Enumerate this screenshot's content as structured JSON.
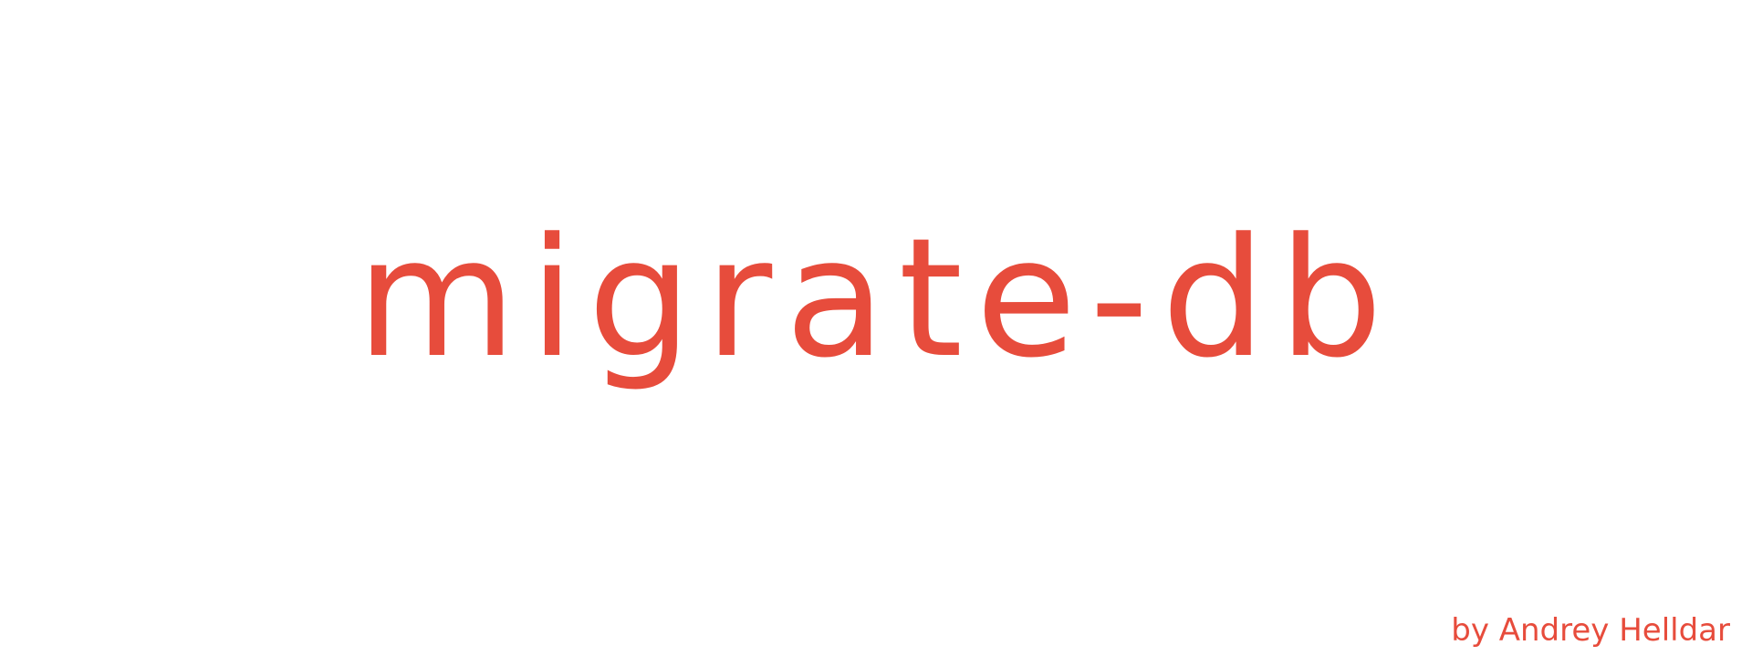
{
  "banner": {
    "title": "migrate-db",
    "author": "by Andrey Helldar",
    "accent_color": "#e74c3c",
    "background_color": "#ffffff"
  }
}
